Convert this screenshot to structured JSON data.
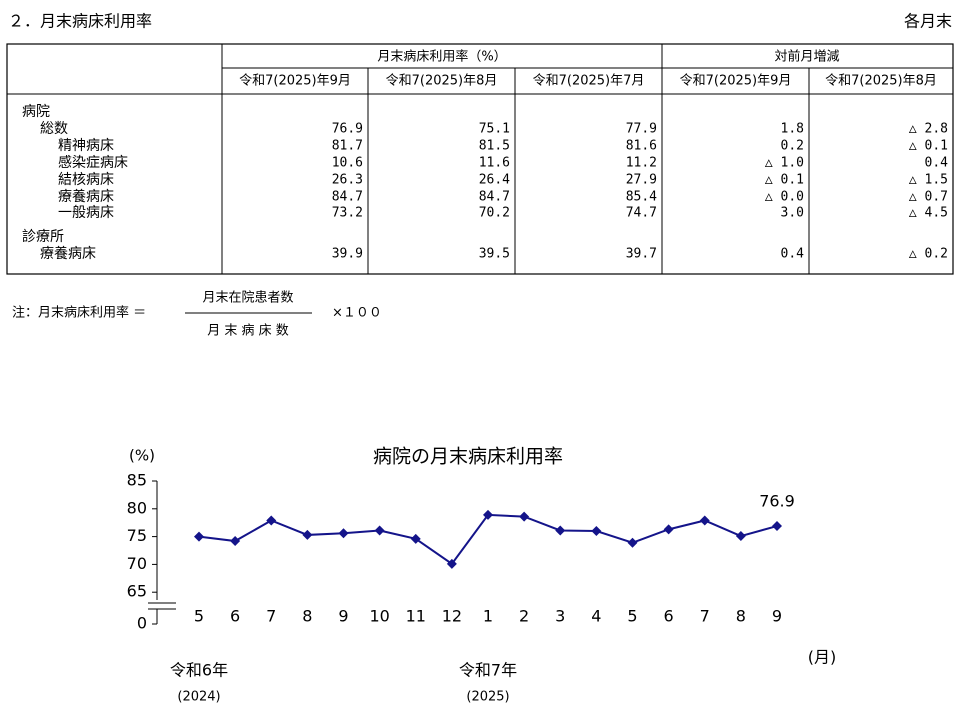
{
  "header": {
    "title": "２．月末病床利用率",
    "note_right": "各月末"
  },
  "table": {
    "group_headers": [
      "月末病床利用率（%）",
      "対前月増減"
    ],
    "columns": [
      "令和7(2025)年9月",
      "令和7(2025)年8月",
      "令和7(2025)年7月",
      "令和7(2025)年9月",
      "令和7(2025)年8月"
    ],
    "rows": [
      {
        "label": "病院",
        "level": 0
      },
      {
        "label": "総数",
        "level": 1,
        "values": [
          "76.9",
          "75.1",
          "77.9",
          "1.8",
          "△ 2.8"
        ]
      },
      {
        "label": "精神病床",
        "level": 2,
        "values": [
          "81.7",
          "81.5",
          "81.6",
          "0.2",
          "△ 0.1"
        ]
      },
      {
        "label": "感染症病床",
        "level": 2,
        "values": [
          "10.6",
          "11.6",
          "11.2",
          "△ 1.0",
          "0.4"
        ]
      },
      {
        "label": "結核病床",
        "level": 2,
        "values": [
          "26.3",
          "26.4",
          "27.9",
          "△ 0.1",
          "△ 1.5"
        ]
      },
      {
        "label": "療養病床",
        "level": 2,
        "values": [
          "84.7",
          "84.7",
          "85.4",
          "△ 0.0",
          "△ 0.7"
        ]
      },
      {
        "label": "一般病床",
        "level": 2,
        "values": [
          "73.2",
          "70.2",
          "74.7",
          "3.0",
          "△ 4.5"
        ]
      },
      {
        "label": "診療所",
        "level": 0
      },
      {
        "label": "療養病床",
        "level": 1,
        "values": [
          "39.9",
          "39.5",
          "39.7",
          "0.4",
          "△ 0.2"
        ]
      }
    ]
  },
  "note": {
    "prefix": "注：月末病床利用率 ＝",
    "numerator": "月末在院患者数",
    "denominator": "月 末 病 床 数",
    "suffix": "×１００"
  },
  "chart_data": {
    "type": "line",
    "title": "病院の月末病床利用率",
    "y_unit": "(%)",
    "x_unit": "(月)",
    "categories": [
      "5",
      "6",
      "7",
      "8",
      "9",
      "10",
      "11",
      "12",
      "1",
      "2",
      "3",
      "4",
      "5",
      "6",
      "7",
      "8",
      "9"
    ],
    "series": [
      {
        "name": "病院",
        "color": "#14148a",
        "values": [
          75.0,
          74.2,
          77.9,
          75.3,
          75.6,
          76.1,
          74.6,
          70.1,
          78.9,
          78.6,
          76.1,
          76.0,
          73.9,
          76.3,
          77.9,
          75.1,
          76.9
        ]
      }
    ],
    "ylim": [
      65,
      85
    ],
    "yticks": [
      0,
      65,
      70,
      75,
      80,
      85
    ],
    "axis_break": true,
    "grid": false,
    "year_labels": [
      {
        "index": 0,
        "era": "令和6年",
        "year": "(2024)"
      },
      {
        "index": 8,
        "era": "令和7年",
        "year": "(2025)"
      }
    ]
  }
}
